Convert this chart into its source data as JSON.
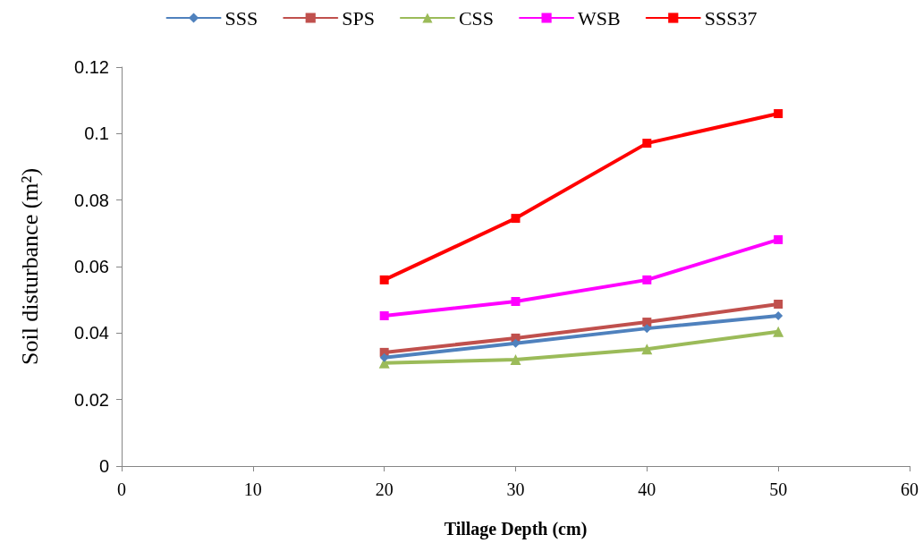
{
  "chart_data": {
    "type": "line",
    "xlabel": "Tillage Depth (cm)",
    "ylabel": "Soil disturbance (m²)",
    "x": [
      20,
      30,
      40,
      50
    ],
    "xlim": [
      0,
      60
    ],
    "xticks": [
      0,
      10,
      20,
      30,
      40,
      50,
      60
    ],
    "ylim": [
      0,
      0.12
    ],
    "yticks": [
      0,
      0.02,
      0.04,
      0.06,
      0.08,
      0.1,
      0.12
    ],
    "grid": false,
    "legend": "top",
    "line_style": "solid",
    "series": [
      {
        "name": "SSS",
        "color": "#4f81bd",
        "marker": "diamond",
        "values": [
          0.0326,
          0.0369,
          0.0414,
          0.0452
        ]
      },
      {
        "name": "SPS",
        "color": "#c0504d",
        "marker": "square",
        "values": [
          0.0342,
          0.0385,
          0.0433,
          0.0487
        ]
      },
      {
        "name": "CSS",
        "color": "#9bbb59",
        "marker": "triangle",
        "values": [
          0.031,
          0.032,
          0.0352,
          0.0404
        ]
      },
      {
        "name": "WSB",
        "color": "#ff00ff",
        "marker": "square",
        "values": [
          0.0452,
          0.0495,
          0.056,
          0.0681
        ]
      },
      {
        "name": "SSS37",
        "color": "#ff0000",
        "marker": "square",
        "values": [
          0.056,
          0.0745,
          0.0971,
          0.106
        ]
      }
    ]
  }
}
